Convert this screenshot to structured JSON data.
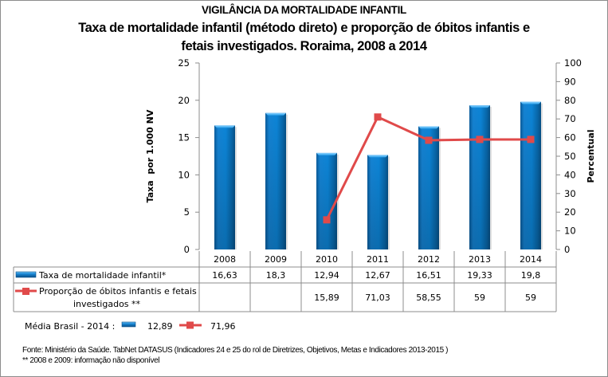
{
  "header": {
    "title": "VIGILÂNCIA DA MORTALIDADE INFANTIL",
    "subtitle_line1": "Taxa de mortalidade infantil (método direto) e proporção de óbitos infantis e",
    "subtitle_line2": "fetais investigados. Roraima, 2008 a 2014"
  },
  "chart_data": {
    "type": "bar+line",
    "title": "Taxa de mortalidade infantil (método direto) e proporção de óbitos infantis e fetais investigados. Roraima, 2008 a 2014",
    "categories": [
      "2008",
      "2009",
      "2010",
      "2011",
      "2012",
      "2013",
      "2014"
    ],
    "series": [
      {
        "name": "Taxa de mortalidade infantil*",
        "type": "bar",
        "axis": "left",
        "values": [
          16.63,
          18.3,
          12.94,
          12.67,
          16.51,
          19.33,
          19.8
        ],
        "labels": [
          "16,63",
          "18,3",
          "12,94",
          "12,67",
          "16,51",
          "19,33",
          "19,8"
        ],
        "color": "#1a7fc9"
      },
      {
        "name": "Proporção de óbitos infantis e fetais investigados **",
        "name_line1": "Proporção de óbitos infantis e fetais",
        "name_line2": "investigados **",
        "type": "line",
        "axis": "right",
        "values": [
          null,
          null,
          15.89,
          71.03,
          58.55,
          59,
          59
        ],
        "labels": [
          "",
          "",
          "15,89",
          "71,03",
          "58,55",
          "59",
          "59"
        ],
        "color": "#e04a4a"
      }
    ],
    "ylabel": "Taxa  por 1.000 NV",
    "y2label": "Percentual",
    "ylim": [
      0,
      25
    ],
    "y2lim": [
      0,
      100
    ],
    "yticks": [
      "0",
      "5",
      "10",
      "15",
      "20",
      "25"
    ],
    "y2ticks": [
      "0",
      "10",
      "20",
      "30",
      "40",
      "50",
      "60",
      "70",
      "80",
      "90",
      "100"
    ],
    "grid": false,
    "legend": "data-table"
  },
  "brasil": {
    "label": "Média Brasil - 2014 :",
    "bar_value": "12,89",
    "line_value": "71,96"
  },
  "footer": {
    "source": "Fonte: Ministério da Saúde. TabNet DATASUS (Indicadores  24 e 25 do rol de Diretrizes, Objetivos, Metas e Indicadores 2013-2015 )",
    "note": "** 2008 e 2009: informação não disponível"
  }
}
